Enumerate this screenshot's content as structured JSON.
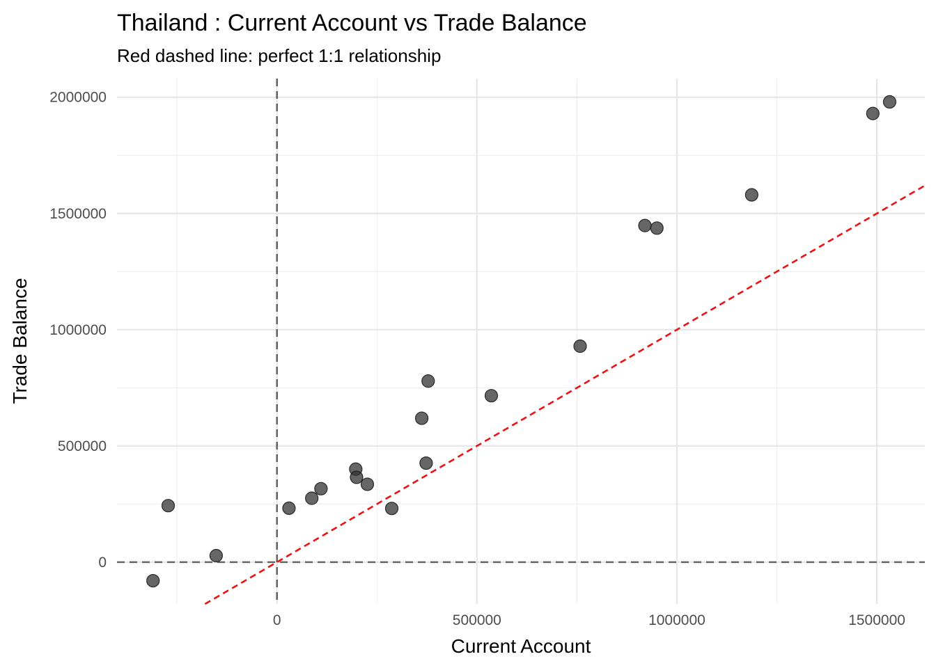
{
  "chart_data": {
    "type": "scatter",
    "title": "Thailand : Current Account vs Trade Balance",
    "subtitle": "Red dashed line: perfect 1:1 relationship",
    "xlabel": "Current Account",
    "ylabel": "Trade Balance",
    "xlim": [
      -400000,
      1620000
    ],
    "ylim": [
      -180000,
      2080000
    ],
    "x_major_ticks": [
      0,
      500000,
      1000000,
      1500000
    ],
    "x_tick_labels": [
      "0",
      "500000",
      "1000000",
      "1500000"
    ],
    "x_minor_ticks": [
      -250000,
      250000,
      750000,
      1250000
    ],
    "y_major_ticks": [
      0,
      500000,
      1000000,
      1500000,
      2000000
    ],
    "y_tick_labels": [
      "0",
      "500000",
      "1000000",
      "1500000",
      "2000000"
    ],
    "y_minor_ticks": [
      250000,
      750000,
      1250000,
      1750000
    ],
    "grid": true,
    "reference_lines": {
      "vline_x": 0,
      "hline_y": 0,
      "color": "#666666",
      "style": "dashed"
    },
    "identity_line": {
      "slope": 1,
      "intercept": 0,
      "x_start": -180000,
      "color": "#ee1111",
      "style": "dashed"
    },
    "point_color": "#333333",
    "point_opacity": 0.75,
    "x": [
      -310000,
      -272000,
      -152000,
      30000,
      87000,
      110000,
      197000,
      199000,
      226000,
      287000,
      362000,
      373000,
      378000,
      536000,
      758000,
      920000,
      950000,
      1187000,
      1490000,
      1532000
    ],
    "y": [
      -80000,
      243000,
      28000,
      232000,
      275000,
      316000,
      400000,
      365000,
      335000,
      231000,
      619000,
      426000,
      779000,
      716000,
      929000,
      1448000,
      1437000,
      1580000,
      1930000,
      1980000
    ]
  }
}
